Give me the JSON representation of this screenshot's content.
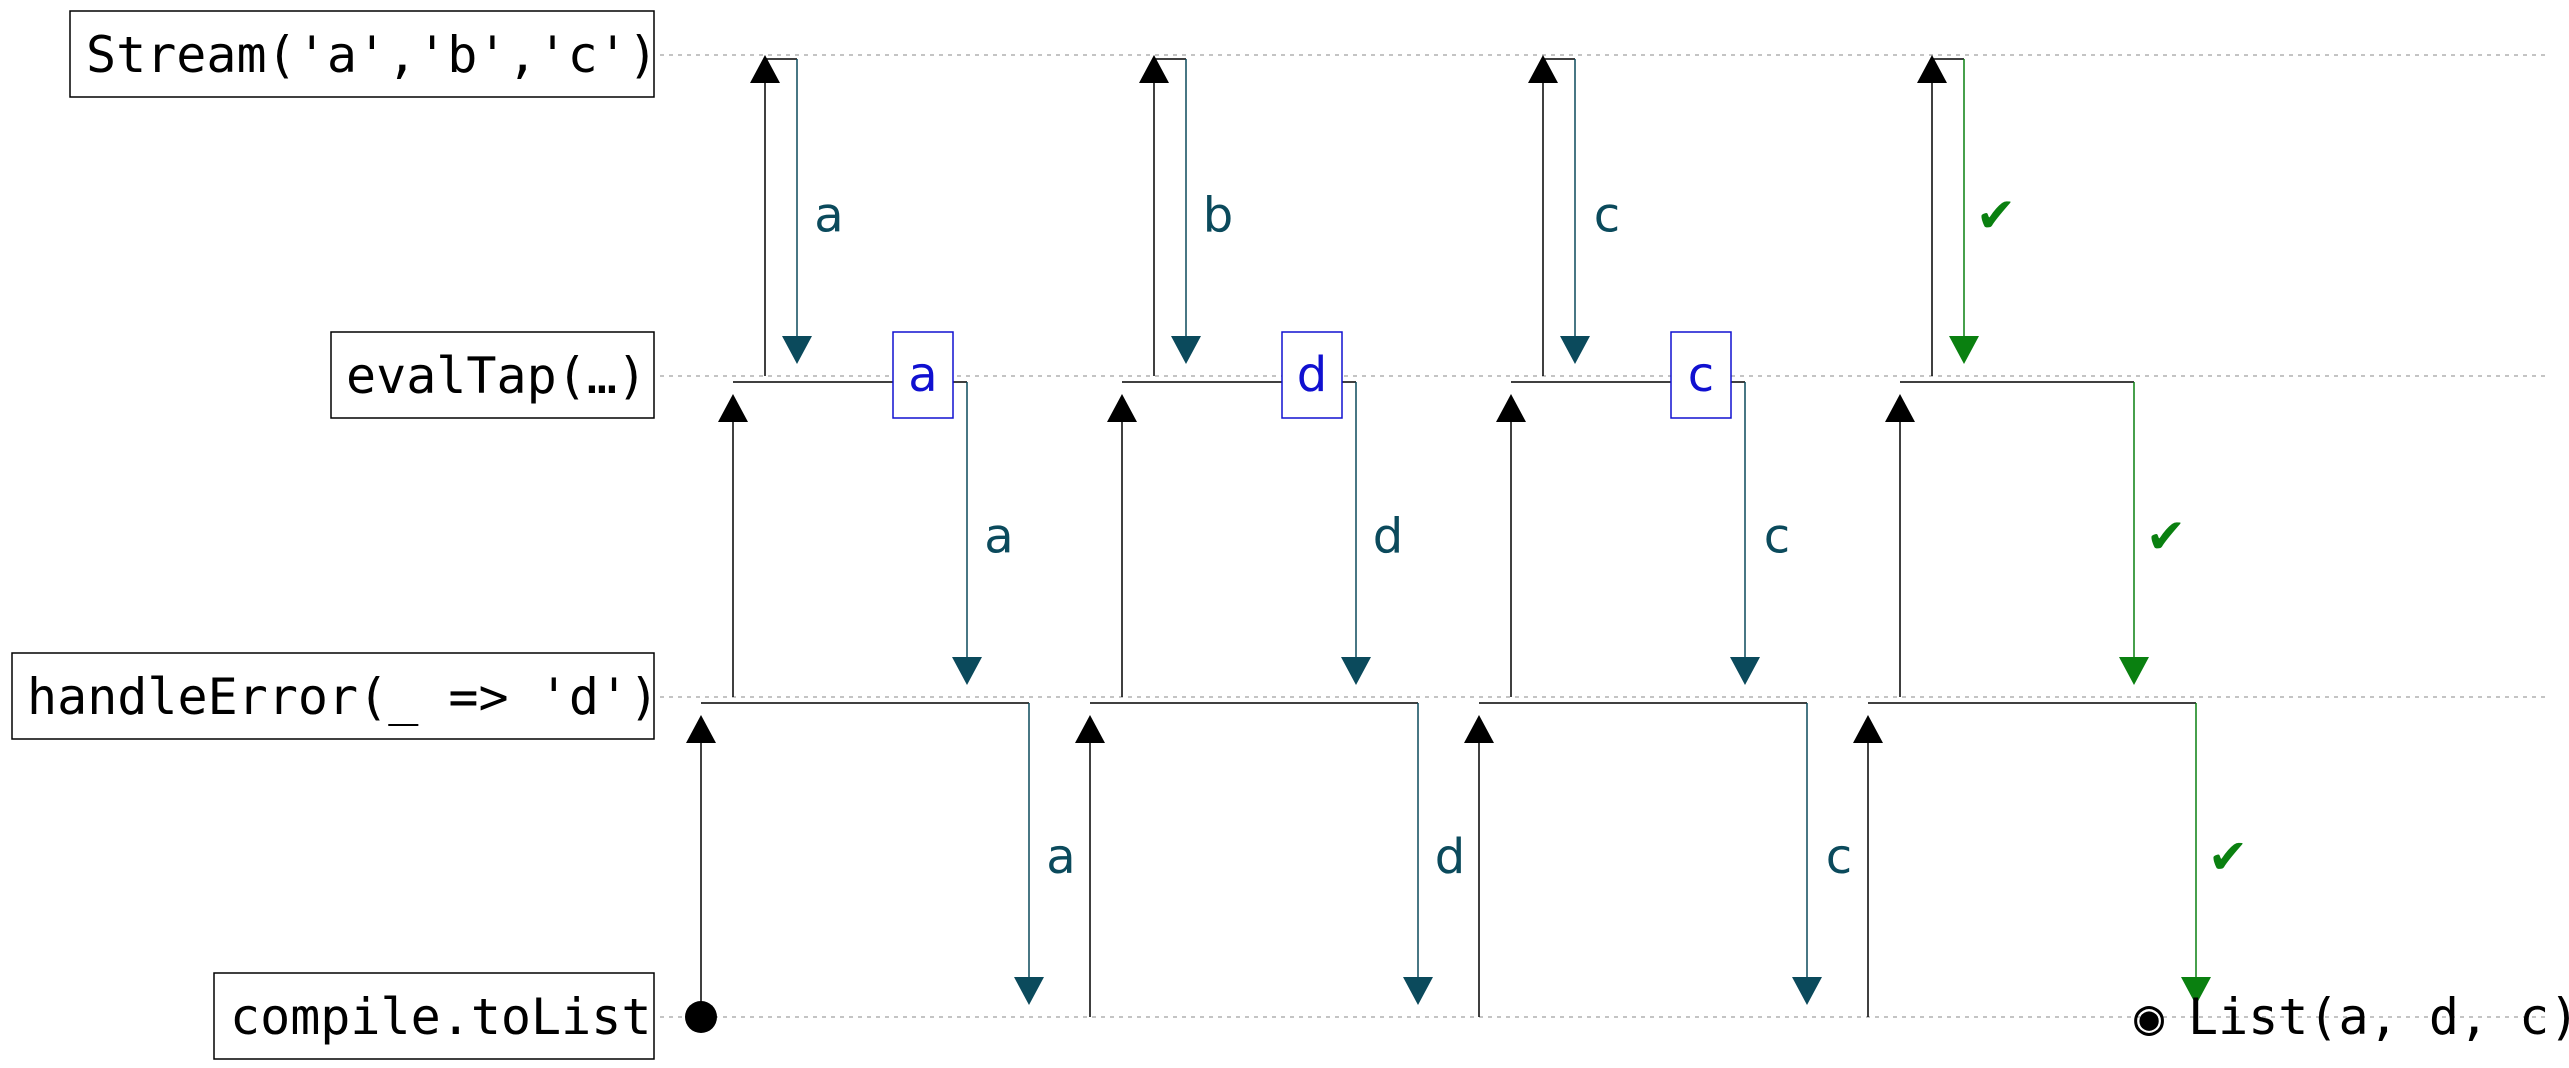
{
  "stages": [
    {
      "label": "Stream('a','b','c')"
    },
    {
      "label": "evalTap(…)"
    },
    {
      "label": "handleError(_ => 'd')"
    },
    {
      "label": "compile.toList"
    }
  ],
  "colors": {
    "pull": "#000000",
    "emit": "#0b4a5c",
    "done": "#0a8010",
    "tap": "#1010d0",
    "lane": "#a0a0a0"
  },
  "pulls": [
    {
      "hops": [
        {
          "stage": 0,
          "value": "a",
          "kind": "emit"
        },
        {
          "stage": 1,
          "value": "a",
          "kind": "emit",
          "tap": "a"
        },
        {
          "stage": 2,
          "value": "a",
          "kind": "emit"
        }
      ]
    },
    {
      "hops": [
        {
          "stage": 0,
          "value": "b",
          "kind": "emit"
        },
        {
          "stage": 1,
          "value": "d",
          "kind": "emit",
          "tap": "d"
        },
        {
          "stage": 2,
          "value": "d",
          "kind": "emit"
        }
      ]
    },
    {
      "hops": [
        {
          "stage": 0,
          "value": "c",
          "kind": "emit"
        },
        {
          "stage": 1,
          "value": "c",
          "kind": "emit",
          "tap": "c"
        },
        {
          "stage": 2,
          "value": "c",
          "kind": "emit"
        }
      ]
    },
    {
      "hops": [
        {
          "stage": 0,
          "value": "✔",
          "kind": "done"
        },
        {
          "stage": 1,
          "value": "✔",
          "kind": "done"
        },
        {
          "stage": 2,
          "value": "✔",
          "kind": "done"
        }
      ]
    }
  ],
  "result": {
    "symbol": "◉",
    "label": "List(a, d, c)"
  }
}
